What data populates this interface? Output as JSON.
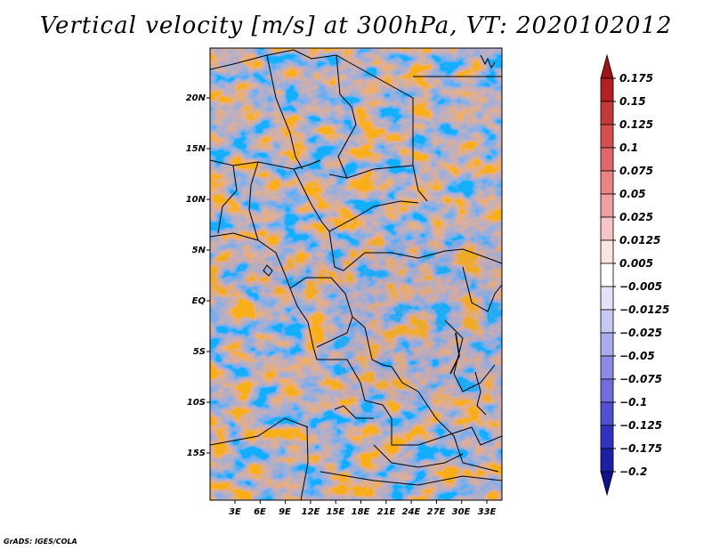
{
  "title": "Vertical velocity [m/s] at 300hPa, VT: 2020102012",
  "credit": "GrADS: IGES/COLA",
  "map": {
    "lat_labels": [
      "20N",
      "15N",
      "10N",
      "5N",
      "EQ",
      "5S",
      "10S",
      "15S"
    ],
    "lon_labels": [
      "3E",
      "6E",
      "9E",
      "12E",
      "15E",
      "18E",
      "21E",
      "24E",
      "27E",
      "30E",
      "33E"
    ]
  },
  "colorbar": {
    "labels": [
      "0.175",
      "0.15",
      "0.125",
      "0.1",
      "0.075",
      "0.05",
      "0.025",
      "0.0125",
      "0.005",
      "−0.005",
      "−0.0125",
      "−0.025",
      "−0.05",
      "−0.075",
      "−0.1",
      "−0.125",
      "−0.175",
      "−0.2"
    ],
    "colors": [
      "#a01414",
      "#b42020",
      "#c43838",
      "#d45050",
      "#e06868",
      "#e88484",
      "#f0a0a0",
      "#f8c4c4",
      "#fce4e4",
      "#ffffff",
      "#e2e2fa",
      "#c8c8f4",
      "#aaaaee",
      "#8c8ce6",
      "#6e6edc",
      "#5050d0",
      "#3232c0",
      "#1e1ea6",
      "#10108a"
    ]
  }
}
